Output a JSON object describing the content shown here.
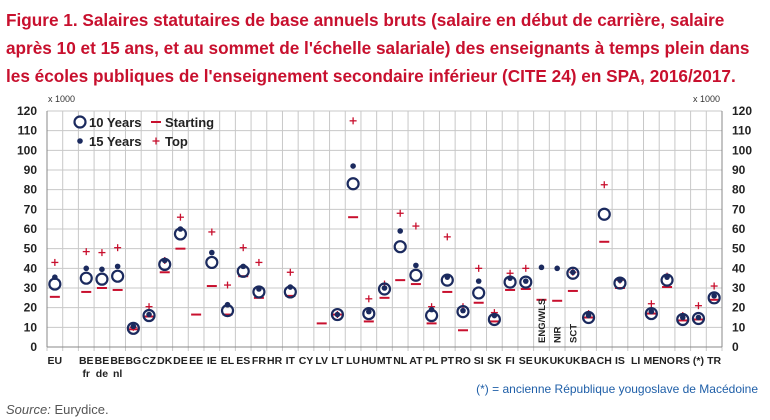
{
  "title": "Figure 1. Salaires statutaires de base annuels bruts (salaire en début de carrière, salaire après 10 et 15 ans, et au sommet de l'échelle salariale) des enseignants à temps plein dans les écoles publiques de l'enseignement secondaire inférieur (CITE 24) en SPA, 2016/2017.",
  "footnote": "(*) = ancienne République yougoslave de Macédoine",
  "source_label": "Source:",
  "source_value": "Eurydice.",
  "colors": {
    "title": "#c8102e",
    "navy": "#1b2a5e",
    "red": "#c8102e",
    "grid": "#c8c8c8",
    "footnote": "#1f5fa8"
  },
  "chart_data": {
    "type": "scatter",
    "unit_label": "x 1000",
    "ylim": [
      0,
      120
    ],
    "yticks": [
      0,
      10,
      20,
      30,
      40,
      50,
      60,
      70,
      80,
      90,
      100,
      110,
      120
    ],
    "grid": true,
    "legend_placement": "top-left",
    "legend": [
      {
        "key": "ten",
        "label": "10 Years",
        "marker": "open-circle"
      },
      {
        "key": "fifteen",
        "label": "15 Years",
        "marker": "filled-dot"
      },
      {
        "key": "start",
        "label": "Starting",
        "marker": "dash"
      },
      {
        "key": "top",
        "label": "Top",
        "marker": "plus"
      }
    ],
    "categories": [
      {
        "label": "EU",
        "sub": "",
        "ten": 32,
        "fifteen": 35.5,
        "start": 25.5,
        "top": 43
      },
      {
        "label": "",
        "sub": "",
        "ten": null,
        "fifteen": null,
        "start": null,
        "top": null
      },
      {
        "label": "BE",
        "sub": "fr",
        "ten": 35,
        "fifteen": 40,
        "start": 28,
        "top": 48.5
      },
      {
        "label": "BE",
        "sub": "de",
        "ten": 34.5,
        "fifteen": 39.5,
        "start": 30,
        "top": 48
      },
      {
        "label": "BE",
        "sub": "nl",
        "ten": 36,
        "fifteen": 41,
        "start": 29,
        "top": 50.5
      },
      {
        "label": "BG",
        "sub": "",
        "ten": 9.5,
        "fifteen": 10.5,
        "start": 9,
        "top": 10
      },
      {
        "label": "CZ",
        "sub": "",
        "ten": 16,
        "fifteen": 16.5,
        "start": 15.5,
        "top": 20.5
      },
      {
        "label": "DK",
        "sub": "",
        "ten": 42,
        "fifteen": 44,
        "start": 38,
        "top": 44
      },
      {
        "label": "DE",
        "sub": "",
        "ten": 57.5,
        "fifteen": 60,
        "start": 50,
        "top": 66
      },
      {
        "label": "EE",
        "sub": "",
        "ten": null,
        "fifteen": null,
        "start": 16.5,
        "top": null
      },
      {
        "label": "IE",
        "sub": "",
        "ten": 43,
        "fifteen": 48,
        "start": 31,
        "top": 58.5
      },
      {
        "label": "EL",
        "sub": "",
        "ten": 18.5,
        "fifteen": 21.5,
        "start": 16.5,
        "top": 31.5
      },
      {
        "label": "ES",
        "sub": "",
        "ten": 38.5,
        "fifteen": 41,
        "start": 36,
        "top": 50.5
      },
      {
        "label": "FR",
        "sub": "",
        "ten": 28,
        "fifteen": 29.5,
        "start": 25,
        "top": 43
      },
      {
        "label": "HR",
        "sub": "",
        "ten": null,
        "fifteen": null,
        "start": null,
        "top": null
      },
      {
        "label": "IT",
        "sub": "",
        "ten": 28,
        "fifteen": 30.5,
        "start": 26,
        "top": 38
      },
      {
        "label": "CY",
        "sub": "",
        "ten": null,
        "fifteen": null,
        "start": null,
        "top": null
      },
      {
        "label": "LV",
        "sub": "",
        "ten": null,
        "fifteen": null,
        "start": 12,
        "top": null
      },
      {
        "label": "LT",
        "sub": "",
        "ten": 16.5,
        "fifteen": 16.5,
        "start": 16.5,
        "top": 16.5
      },
      {
        "label": "LU",
        "sub": "",
        "ten": 83,
        "fifteen": 92,
        "start": 66,
        "top": 115
      },
      {
        "label": "HU",
        "sub": "",
        "ten": 17,
        "fifteen": 18,
        "start": 13,
        "top": 24.5
      },
      {
        "label": "MT",
        "sub": "",
        "ten": 29.5,
        "fifteen": 30,
        "start": 25,
        "top": 32
      },
      {
        "label": "NL",
        "sub": "",
        "ten": 51,
        "fifteen": 59,
        "start": 34,
        "top": 68
      },
      {
        "label": "AT",
        "sub": "",
        "ten": 36.5,
        "fifteen": 41.5,
        "start": 32,
        "top": 61.5
      },
      {
        "label": "PL",
        "sub": "",
        "ten": 16,
        "fifteen": 19,
        "start": 12,
        "top": 20.5
      },
      {
        "label": "PT",
        "sub": "",
        "ten": 34,
        "fifteen": 35.5,
        "start": 28,
        "top": 56
      },
      {
        "label": "RO",
        "sub": "",
        "ten": 18,
        "fifteen": 18.5,
        "start": 8.5,
        "top": 20.5
      },
      {
        "label": "SI",
        "sub": "",
        "ten": 27.5,
        "fifteen": 33.5,
        "start": 22.5,
        "top": 40
      },
      {
        "label": "SK",
        "sub": "",
        "ten": 14,
        "fifteen": 16,
        "start": 13,
        "top": 17.5
      },
      {
        "label": "FI",
        "sub": "",
        "ten": 33,
        "fifteen": 35,
        "start": 29,
        "top": 37.5
      },
      {
        "label": "SE",
        "sub": "",
        "ten": 33,
        "fifteen": 33.5,
        "start": 29.5,
        "top": 40
      },
      {
        "label": "UK",
        "sub": "ENG/WLS",
        "ten": null,
        "fifteen": 40.5,
        "start": 24,
        "top": null
      },
      {
        "label": "UK",
        "sub": "NIR",
        "ten": null,
        "fifteen": 40,
        "start": 23.5,
        "top": null
      },
      {
        "label": "UK",
        "sub": "SCT",
        "ten": 37.5,
        "fifteen": 38,
        "start": 28.5,
        "top": 38
      },
      {
        "label": "BA",
        "sub": "",
        "ten": 15,
        "fifteen": 16,
        "start": 15,
        "top": 17
      },
      {
        "label": "CH",
        "sub": "",
        "ten": 67.5,
        "fifteen": null,
        "start": 53.5,
        "top": 82.5
      },
      {
        "label": "IS",
        "sub": "",
        "ten": 32.5,
        "fifteen": 34,
        "start": 30,
        "top": 34
      },
      {
        "label": "LI",
        "sub": "",
        "ten": null,
        "fifteen": null,
        "start": null,
        "top": null
      },
      {
        "label": "ME",
        "sub": "",
        "ten": 17,
        "fifteen": 18,
        "start": 17,
        "top": 22
      },
      {
        "label": "NO",
        "sub": "",
        "ten": 34,
        "fifteen": 35.5,
        "start": 30.5,
        "top": 36
      },
      {
        "label": "RS",
        "sub": "",
        "ten": 14,
        "fifteen": 15,
        "start": 13.5,
        "top": 16
      },
      {
        "label": "(*)",
        "sub": "",
        "ten": 14.5,
        "fifteen": 15,
        "start": 14,
        "top": 21
      },
      {
        "label": "TR",
        "sub": "",
        "ten": 25,
        "fifteen": 26,
        "start": 24,
        "top": 31
      }
    ]
  }
}
